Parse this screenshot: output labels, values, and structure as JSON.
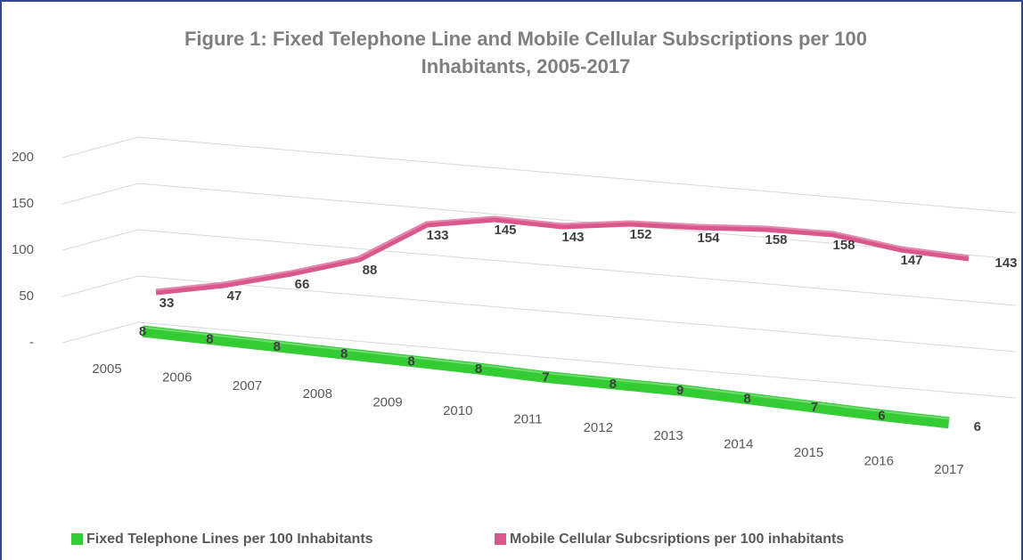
{
  "chart_data": {
    "type": "line3d",
    "title": "Figure 1: Fixed Telephone Line and Mobile Cellular Subscriptions per 100",
    "title_line2": "Inhabitants, 2005-2017",
    "categories": [
      "2005",
      "2006",
      "2007",
      "2008",
      "2009",
      "2010",
      "2011",
      "2012",
      "2013",
      "2014",
      "2015",
      "2016",
      "2017"
    ],
    "series": [
      {
        "name": "Fixed Telephone Lines per 100 Inhabitants",
        "color": "#33cc33",
        "values": [
          8,
          8,
          8,
          8,
          8,
          8,
          7,
          8,
          9,
          8,
          7,
          6,
          6
        ]
      },
      {
        "name": "Mobile Cellular Subcsriptions per 100 inhabitants",
        "color": "#d9578a",
        "values": [
          33,
          47,
          66,
          88,
          133,
          145,
          143,
          152,
          154,
          158,
          158,
          147,
          143
        ]
      }
    ],
    "ylim": [
      0,
      200
    ],
    "yticks": [
      {
        "value": 0,
        "label": "-"
      },
      50,
      100,
      150,
      200
    ],
    "grid": true,
    "legend": "bottom"
  }
}
